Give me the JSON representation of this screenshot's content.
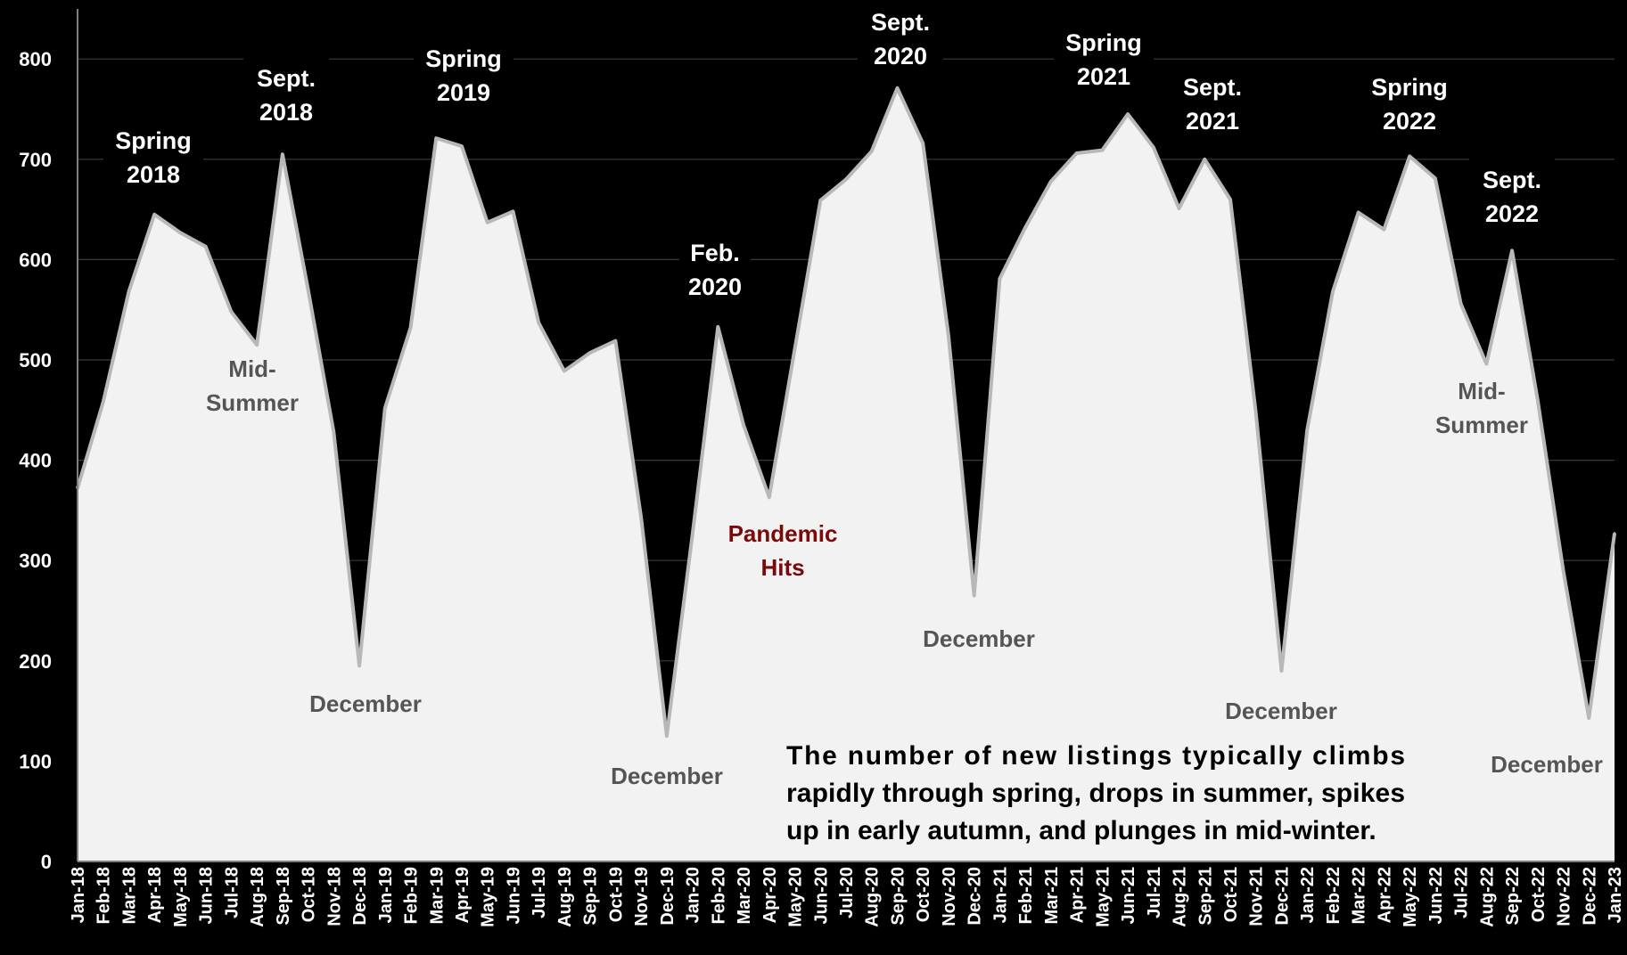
{
  "chart_data": {
    "type": "area",
    "title": "",
    "xlabel": "",
    "ylabel": "",
    "ylim": [
      0,
      850
    ],
    "yticks": [
      0,
      100,
      200,
      300,
      400,
      500,
      600,
      700,
      800
    ],
    "grid": true,
    "colors": {
      "background": "#000000",
      "fill": "#f2f2f2",
      "stroke": "#b8b8b8",
      "grid": "#3a3a3a"
    },
    "categories": [
      "Jan-18",
      "Feb-18",
      "Mar-18",
      "Apr-18",
      "May-18",
      "Jun-18",
      "Jul-18",
      "Aug-18",
      "Sep-18",
      "Oct-18",
      "Nov-18",
      "Dec-18",
      "Jan-19",
      "Feb-19",
      "Mar-19",
      "Apr-19",
      "May-19",
      "Jun-19",
      "Jul-19",
      "Aug-19",
      "Sep-19",
      "Oct-19",
      "Nov-19",
      "Dec-19",
      "Jan-20",
      "Feb-20",
      "Mar-20",
      "Apr-20",
      "May-20",
      "Jun-20",
      "Jul-20",
      "Aug-20",
      "Sep-20",
      "Oct-20",
      "Nov-20",
      "Dec-20",
      "Jan-21",
      "Feb-21",
      "Mar-21",
      "Apr-21",
      "May-21",
      "Jun-21",
      "Jul-21",
      "Aug-21",
      "Sep-21",
      "Oct-21",
      "Nov-21",
      "Dec-21",
      "Jan-22",
      "Feb-22",
      "Mar-22",
      "Apr-22",
      "May-22",
      "Jun-22",
      "Jul-22",
      "Aug-22",
      "Sep-22",
      "Oct-22",
      "Nov-22",
      "Dec-22",
      "Jan-23"
    ],
    "series": [
      {
        "values": [
          372,
          458,
          568,
          645,
          627,
          613,
          548,
          515,
          705,
          570,
          428,
          195,
          452,
          532,
          721,
          713,
          637,
          648,
          537,
          489,
          507,
          519,
          343,
          125,
          325,
          533,
          435,
          363,
          511,
          659,
          680,
          708,
          771,
          716,
          524,
          265,
          581,
          632,
          678,
          706,
          709,
          745,
          712,
          651,
          700,
          660,
          447,
          190,
          430,
          568,
          647,
          630,
          703,
          681,
          556,
          496,
          609,
          460,
          290,
          143,
          327
        ]
      }
    ],
    "annotations": [
      {
        "id": "spring-2018",
        "lines": [
          "Spring",
          "2018"
        ],
        "style": "white"
      },
      {
        "id": "sept-2018",
        "lines": [
          "Sept.",
          "2018"
        ],
        "style": "white"
      },
      {
        "id": "mid-summer-2018",
        "lines": [
          "Mid-",
          "Summer"
        ],
        "style": "gray"
      },
      {
        "id": "december-2018",
        "lines": [
          "December"
        ],
        "style": "gray"
      },
      {
        "id": "spring-2019",
        "lines": [
          "Spring",
          "2019"
        ],
        "style": "white"
      },
      {
        "id": "december-2019",
        "lines": [
          "December"
        ],
        "style": "gray"
      },
      {
        "id": "feb-2020",
        "lines": [
          "Feb.",
          "2020"
        ],
        "style": "white"
      },
      {
        "id": "pandemic-hits",
        "lines": [
          "Pandemic",
          "Hits"
        ],
        "style": "red"
      },
      {
        "id": "sept-2020",
        "lines": [
          "Sept.",
          "2020"
        ],
        "style": "white"
      },
      {
        "id": "december-2020",
        "lines": [
          "December"
        ],
        "style": "gray"
      },
      {
        "id": "spring-2021",
        "lines": [
          "Spring",
          "2021"
        ],
        "style": "white"
      },
      {
        "id": "sept-2021",
        "lines": [
          "Sept.",
          "2021"
        ],
        "style": "white"
      },
      {
        "id": "december-2021",
        "lines": [
          "December"
        ],
        "style": "gray"
      },
      {
        "id": "spring-2022",
        "lines": [
          "Spring",
          "2022"
        ],
        "style": "white"
      },
      {
        "id": "sept-2022",
        "lines": [
          "Sept.",
          "2022"
        ],
        "style": "white"
      },
      {
        "id": "mid-summer-2022",
        "lines": [
          "Mid-",
          "Summer"
        ],
        "style": "gray"
      },
      {
        "id": "december-2022",
        "lines": [
          "December"
        ],
        "style": "gray"
      }
    ],
    "note": [
      "The number of new listings typically climbs",
      "rapidly through spring, drops in summer, spikes",
      "up in early autumn, and plunges in mid-winter."
    ]
  }
}
